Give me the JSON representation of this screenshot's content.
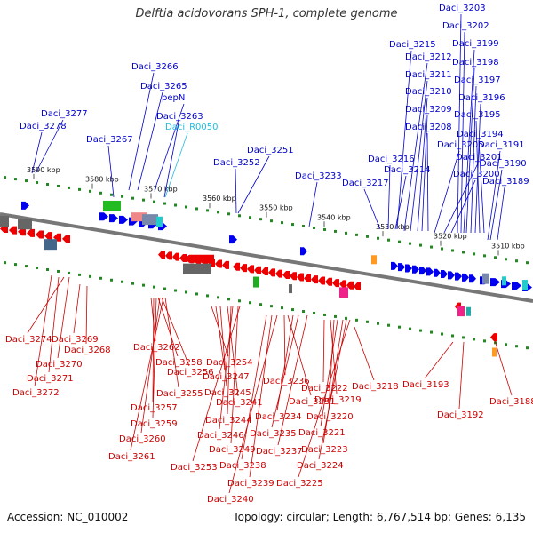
{
  "title": "Delftia acidovorans SPH-1, complete genome",
  "footer": {
    "accession": "Accession: NC_010002",
    "summary": "Topology: circular; Length: 6,767,514 bp; Genes: 6,135"
  },
  "colors": {
    "plus_strand": "#0000ee",
    "minus_strand": "#ee0000",
    "rna": "#22ccdd",
    "label_plus": "#0000cc",
    "label_minus": "#cc0000",
    "label_rna": "#22bbdd",
    "tick": "#228822",
    "backbone": "#777777"
  },
  "scale_labels": [
    "3590 kbp",
    "3580 kbp",
    "3570 kbp",
    "3560 kbp",
    "3550 kbp",
    "3540 kbp",
    "3530 kbp",
    "3520 kbp",
    "3510 kbp"
  ],
  "top_labels": [
    {
      "text": "Daci_3277",
      "kind": "plus"
    },
    {
      "text": "Daci_3278",
      "kind": "plus"
    },
    {
      "text": "Daci_3267",
      "kind": "plus"
    },
    {
      "text": "Daci_3266",
      "kind": "plus"
    },
    {
      "text": "Daci_3265",
      "kind": "plus"
    },
    {
      "text": "pepN",
      "kind": "plus"
    },
    {
      "text": "Daci_3263",
      "kind": "plus"
    },
    {
      "text": "Daci_R0050",
      "kind": "rna"
    },
    {
      "text": "Daci_3252",
      "kind": "plus"
    },
    {
      "text": "Daci_3251",
      "kind": "plus"
    },
    {
      "text": "Daci_3233",
      "kind": "plus"
    },
    {
      "text": "Daci_3217",
      "kind": "plus"
    },
    {
      "text": "Daci_3216",
      "kind": "plus"
    },
    {
      "text": "Daci_3214",
      "kind": "plus"
    },
    {
      "text": "Daci_3215",
      "kind": "plus"
    },
    {
      "text": "Daci_3212",
      "kind": "plus"
    },
    {
      "text": "Daci_3211",
      "kind": "plus"
    },
    {
      "text": "Daci_3210",
      "kind": "plus"
    },
    {
      "text": "Daci_3209",
      "kind": "plus"
    },
    {
      "text": "Daci_3208",
      "kind": "plus"
    },
    {
      "text": "Daci_3205",
      "kind": "plus"
    },
    {
      "text": "Daci_3201",
      "kind": "plus"
    },
    {
      "text": "Daci_3200",
      "kind": "plus"
    },
    {
      "text": "Daci_3203",
      "kind": "plus"
    },
    {
      "text": "Daci_3202",
      "kind": "plus"
    },
    {
      "text": "Daci_3199",
      "kind": "plus"
    },
    {
      "text": "Daci_3198",
      "kind": "plus"
    },
    {
      "text": "Daci_3197",
      "kind": "plus"
    },
    {
      "text": "Daci_3196",
      "kind": "plus"
    },
    {
      "text": "Daci_3195",
      "kind": "plus"
    },
    {
      "text": "Daci_3194",
      "kind": "plus"
    },
    {
      "text": "Daci_3191",
      "kind": "plus"
    },
    {
      "text": "Daci_3190",
      "kind": "plus"
    },
    {
      "text": "Daci_3189",
      "kind": "plus"
    }
  ],
  "bottom_labels": [
    {
      "text": "Daci_3274",
      "kind": "minus"
    },
    {
      "text": "Daci_3269",
      "kind": "minus"
    },
    {
      "text": "Daci_3268",
      "kind": "minus"
    },
    {
      "text": "Daci_3270",
      "kind": "minus"
    },
    {
      "text": "Daci_3271",
      "kind": "minus"
    },
    {
      "text": "Daci_3272",
      "kind": "minus"
    },
    {
      "text": "Daci_3262",
      "kind": "minus"
    },
    {
      "text": "Daci_3258",
      "kind": "minus"
    },
    {
      "text": "Daci_3256",
      "kind": "minus"
    },
    {
      "text": "Daci_3255",
      "kind": "minus"
    },
    {
      "text": "Daci_3257",
      "kind": "minus"
    },
    {
      "text": "Daci_3259",
      "kind": "minus"
    },
    {
      "text": "Daci_3260",
      "kind": "minus"
    },
    {
      "text": "Daci_3261",
      "kind": "minus"
    },
    {
      "text": "Daci_3254",
      "kind": "minus"
    },
    {
      "text": "Daci_3247",
      "kind": "minus"
    },
    {
      "text": "Daci_3245",
      "kind": "minus"
    },
    {
      "text": "Daci_3241",
      "kind": "minus"
    },
    {
      "text": "Daci_3244",
      "kind": "minus"
    },
    {
      "text": "Daci_3246",
      "kind": "minus"
    },
    {
      "text": "Daci_3249",
      "kind": "minus"
    },
    {
      "text": "Daci_3253",
      "kind": "minus"
    },
    {
      "text": "Daci_3238",
      "kind": "minus"
    },
    {
      "text": "Daci_3239",
      "kind": "minus"
    },
    {
      "text": "Daci_3240",
      "kind": "minus"
    },
    {
      "text": "Daci_3236",
      "kind": "minus"
    },
    {
      "text": "Daci_3231",
      "kind": "minus"
    },
    {
      "text": "Daci_3234",
      "kind": "minus"
    },
    {
      "text": "Daci_3235",
      "kind": "minus"
    },
    {
      "text": "Daci_3237",
      "kind": "minus"
    },
    {
      "text": "Daci_3222",
      "kind": "minus"
    },
    {
      "text": "Daci_3219",
      "kind": "minus"
    },
    {
      "text": "Daci_3220",
      "kind": "minus"
    },
    {
      "text": "Daci_3221",
      "kind": "minus"
    },
    {
      "text": "Daci_3223",
      "kind": "minus"
    },
    {
      "text": "Daci_3224",
      "kind": "minus"
    },
    {
      "text": "Daci_3225",
      "kind": "minus"
    },
    {
      "text": "Daci_3218",
      "kind": "minus"
    },
    {
      "text": "Daci_3193",
      "kind": "minus"
    },
    {
      "text": "Daci_3192",
      "kind": "minus"
    },
    {
      "text": "Daci_3188",
      "kind": "minus"
    }
  ]
}
